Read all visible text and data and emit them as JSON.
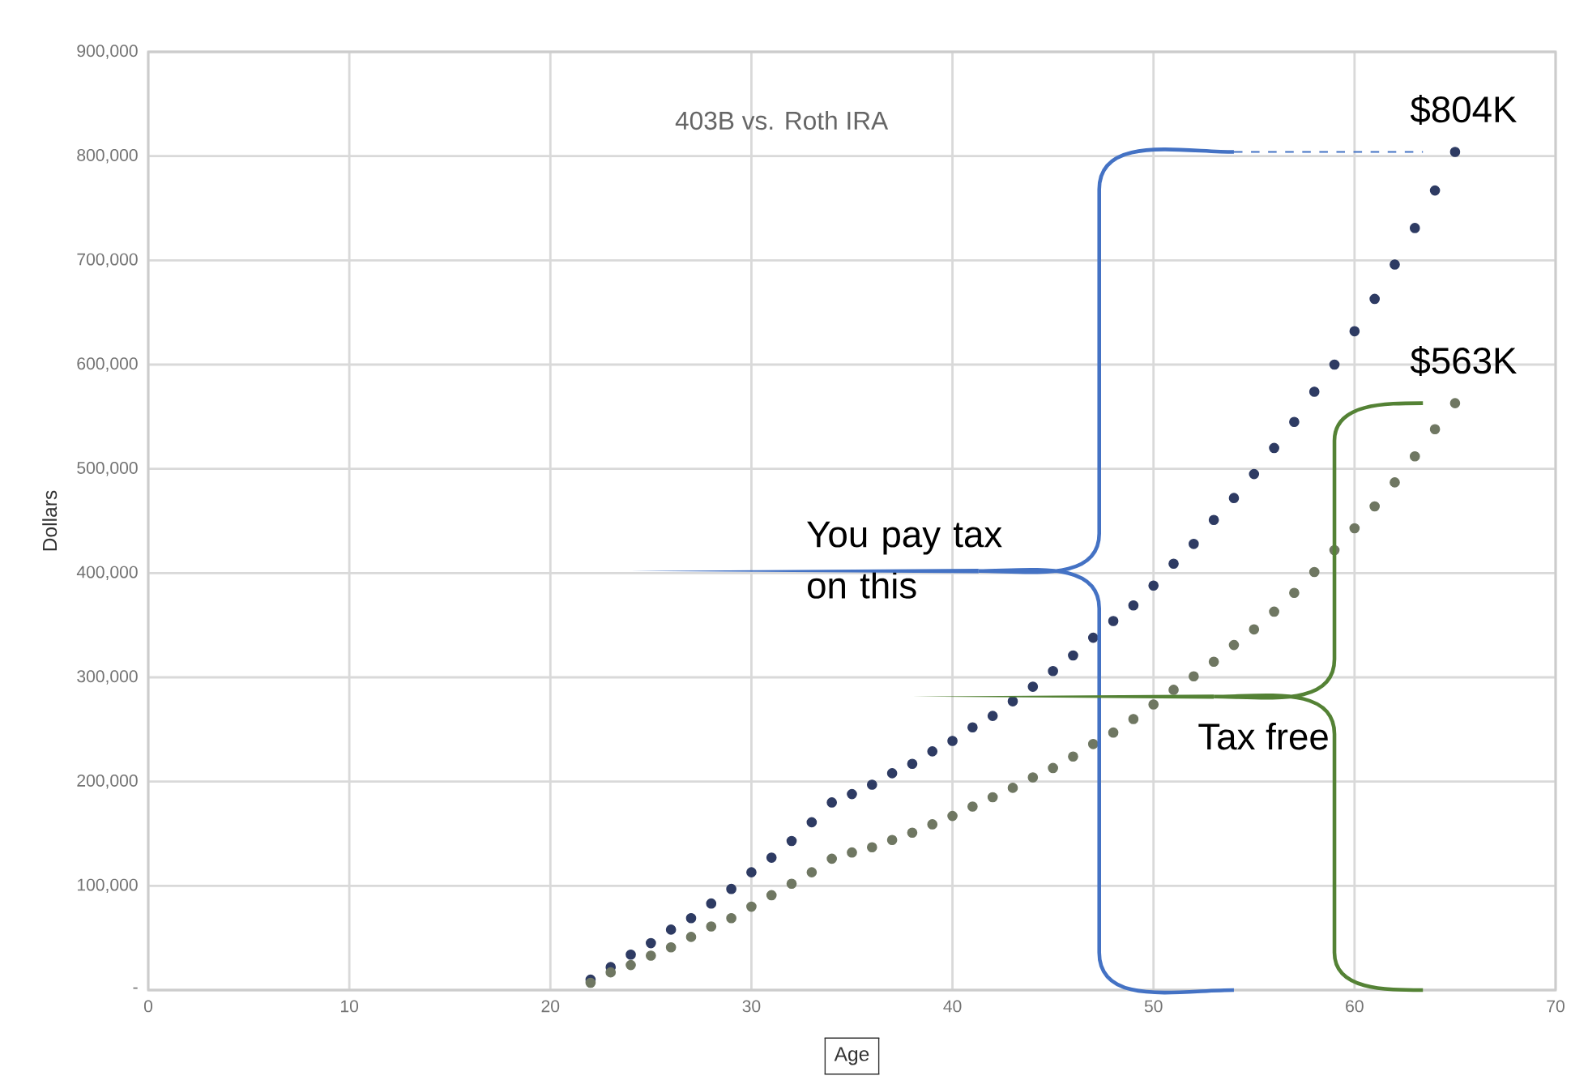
{
  "chart_data": {
    "type": "scatter",
    "title": "403B vs. Roth IRA",
    "xlabel": "Age",
    "ylabel": "Dollars",
    "x": [
      22,
      23,
      24,
      25,
      26,
      27,
      28,
      29,
      30,
      31,
      32,
      33,
      34,
      35,
      36,
      37,
      38,
      39,
      40,
      41,
      42,
      43,
      44,
      45,
      46,
      47,
      48,
      49,
      50,
      51,
      52,
      53,
      54,
      55,
      56,
      57,
      58,
      59,
      60,
      61,
      62,
      63,
      64,
      65
    ],
    "series": [
      {
        "color": "#2e3b63",
        "values": [
          10000,
          22000,
          34000,
          45000,
          58000,
          69000,
          83000,
          97000,
          113000,
          127000,
          143000,
          161000,
          180000,
          188000,
          197000,
          208000,
          217000,
          229000,
          239000,
          252000,
          263000,
          277000,
          291000,
          306000,
          321000,
          338000,
          354000,
          369000,
          388000,
          409000,
          428000,
          451000,
          472000,
          495000,
          520000,
          545000,
          574000,
          600000,
          632000,
          663000,
          696000,
          731000,
          767000,
          804000
        ]
      },
      {
        "color": "#6f7762",
        "values": [
          7000,
          17000,
          24000,
          33000,
          41000,
          51000,
          61000,
          69000,
          80000,
          91000,
          102000,
          113000,
          126000,
          132000,
          137000,
          144000,
          151000,
          159000,
          167000,
          176000,
          185000,
          194000,
          204000,
          213000,
          224000,
          236000,
          247000,
          260000,
          274000,
          288000,
          301000,
          315000,
          331000,
          346000,
          363000,
          381000,
          401000,
          422000,
          443000,
          464000,
          487000,
          512000,
          538000,
          563000
        ]
      }
    ],
    "xlim": [
      0,
      70
    ],
    "xticks": [
      0,
      10,
      20,
      30,
      40,
      50,
      60,
      70
    ],
    "ylim": [
      0,
      900000
    ],
    "yticks": [
      {
        "value": 0,
        "label": "-"
      },
      {
        "value": 100000,
        "label": "100,000"
      },
      {
        "value": 200000,
        "label": "200,000"
      },
      {
        "value": 300000,
        "label": "300,000"
      },
      {
        "value": 400000,
        "label": "400,000"
      },
      {
        "value": 500000,
        "label": "500,000"
      },
      {
        "value": 600000,
        "label": "600,000"
      },
      {
        "value": 700000,
        "label": "700,000"
      },
      {
        "value": 800000,
        "label": "800,000"
      },
      {
        "value": 900000,
        "label": "900,000"
      }
    ],
    "grid": true,
    "annotations": [
      {
        "text": "$804K",
        "x": 65,
        "y": 804000
      },
      {
        "text": "$563K",
        "x": 65,
        "y": 563000
      },
      "You pay tax on this",
      "Tax free"
    ]
  }
}
